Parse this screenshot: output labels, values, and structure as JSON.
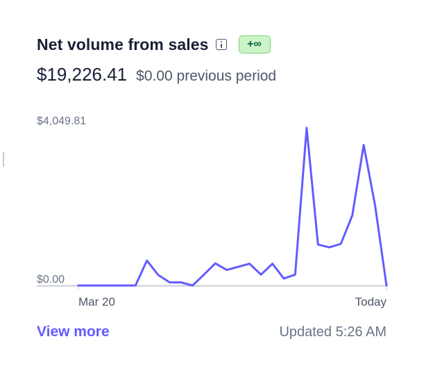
{
  "card": {
    "title": "Net volume from sales",
    "info_icon": "info-icon",
    "badge": "+∞",
    "amount": "$19,226.41",
    "previous_period": "$0.00 previous period"
  },
  "colors": {
    "line": "#635bff",
    "accent": "#635bff",
    "badge_bg": "#cbf4c9",
    "badge_text": "#0e6245"
  },
  "chart_data": {
    "type": "line",
    "x_start_label": "Mar 20",
    "x_end_label": "Today",
    "y_max_label": "$4,049.81",
    "y_min_label": "$0.00",
    "ylim": [
      0,
      4049.81
    ],
    "series": [
      {
        "values": [
          0,
          0,
          0,
          0,
          0,
          0,
          640,
          270,
          80,
          80,
          0,
          280,
          570,
          400,
          480,
          560,
          280,
          560,
          180,
          280,
          4049.81,
          1050,
          980,
          1070,
          1800,
          3610,
          2050,
          0
        ]
      }
    ]
  },
  "footer": {
    "view_more": "View more",
    "updated": "Updated 5:26 AM"
  }
}
